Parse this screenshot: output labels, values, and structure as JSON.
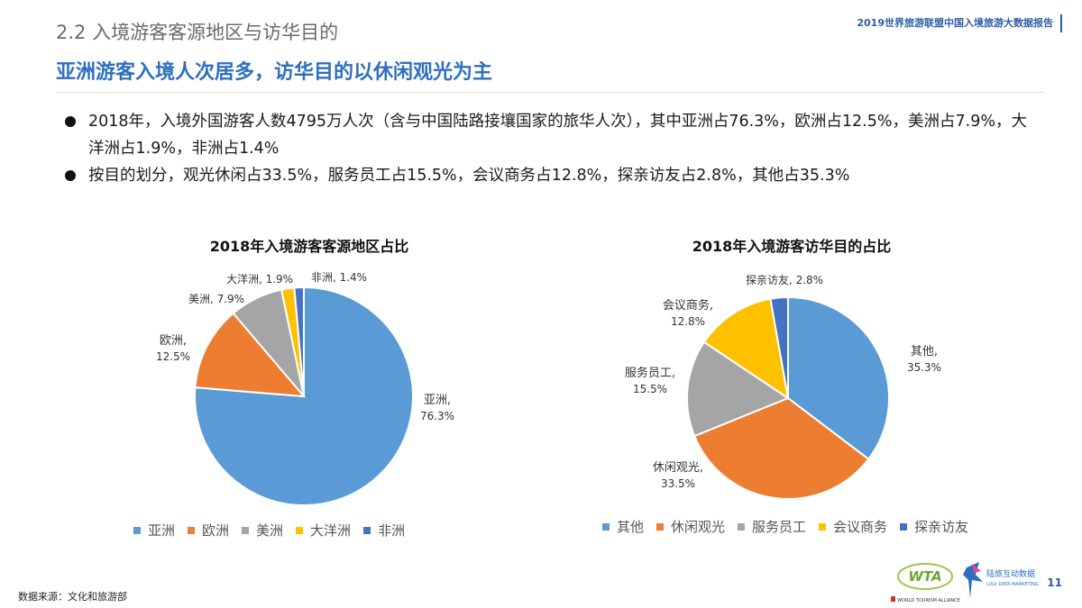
{
  "header": {
    "section_title": "2.2 入境游客客源地区与访华目的",
    "report_name": "2019世界旅游联盟中国入境旅游大数据报告",
    "headline": "亚洲游客入境人次居多，访华目的以休闲观光为主"
  },
  "bullets": [
    "2018年，入境外国游客人数4795万人次（含与中国陆路接壤国家的旅华人次），其中亚洲占76.3%，欧洲占12.5%，美洲占7.9%，大洋洲占1.9%，非洲占1.4%",
    "按目的划分，观光休闲占33.5%，服务员工占15.5%，会议商务占12.8%，探亲访友占2.8%，其他占35.3%"
  ],
  "chart_data": [
    {
      "type": "pie",
      "title": "2018年入境游客客源地区占比",
      "categories": [
        "亚洲",
        "欧洲",
        "美洲",
        "大洋洲",
        "非洲"
      ],
      "values": [
        76.3,
        12.5,
        7.9,
        1.9,
        1.4
      ],
      "value_labels": [
        "76.3%",
        "12.5%",
        "7.9%",
        "1.9%",
        "1.4%"
      ],
      "colors": [
        "#5b9bd5",
        "#ed7d31",
        "#a5a5a5",
        "#ffc000",
        "#4472c4"
      ],
      "legend": "bottom"
    },
    {
      "type": "pie",
      "title": "2018年入境游客访华目的占比",
      "categories": [
        "其他",
        "休闲观光",
        "服务员工",
        "会议商务",
        "探亲访友"
      ],
      "values": [
        35.3,
        33.5,
        15.5,
        12.8,
        2.8
      ],
      "value_labels": [
        "35.3%",
        "33.5%",
        "15.5%",
        "12.8%",
        "2.8%"
      ],
      "colors": [
        "#5b9bd5",
        "#ed7d31",
        "#a5a5a5",
        "#ffc000",
        "#4472c4"
      ],
      "legend": "bottom"
    }
  ],
  "footer": {
    "source": "数据来源：文化和旅游部",
    "page_number": "11",
    "logo_wta_text": "WTA",
    "logo_wta_subtext": "WORLD TOURISM ALLIANCE",
    "logo_lyx_text": "陆旅互动数据",
    "logo_lyx_subtext": "LULV DATA MARKETING"
  }
}
